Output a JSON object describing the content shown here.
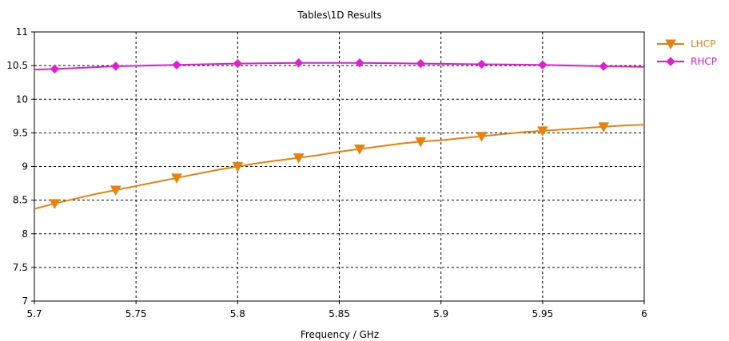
{
  "chart_data": {
    "type": "line",
    "title": "Tables\\1D Results",
    "xlabel": "Frequency / GHz",
    "ylabel": "",
    "xlim": [
      5.7,
      6.0
    ],
    "ylim": [
      7,
      11
    ],
    "x_ticks": [
      "5.7",
      "5.75",
      "5.8",
      "5.85",
      "5.9",
      "5.95",
      "6"
    ],
    "y_ticks": [
      "7",
      "7.5",
      "8",
      "8.5",
      "9",
      "9.5",
      "10",
      "10.5",
      "11"
    ],
    "grid": true,
    "legend_position": "right",
    "series": [
      {
        "name": "LHCP",
        "color": "#e8820c",
        "marker": "triangle-down",
        "x": [
          5.7,
          5.71,
          5.72,
          5.73,
          5.74,
          5.75,
          5.76,
          5.77,
          5.78,
          5.79,
          5.8,
          5.81,
          5.82,
          5.83,
          5.84,
          5.85,
          5.86,
          5.87,
          5.88,
          5.89,
          5.9,
          5.91,
          5.92,
          5.93,
          5.94,
          5.95,
          5.96,
          5.97,
          5.98,
          5.99,
          6.0
        ],
        "y": [
          8.37,
          8.45,
          8.52,
          8.59,
          8.65,
          8.71,
          8.77,
          8.83,
          8.89,
          8.95,
          9.0,
          9.05,
          9.09,
          9.13,
          9.17,
          9.22,
          9.26,
          9.3,
          9.34,
          9.37,
          9.39,
          9.42,
          9.45,
          9.48,
          9.51,
          9.53,
          9.55,
          9.57,
          9.59,
          9.61,
          9.62
        ],
        "marker_x": [
          5.71,
          5.74,
          5.77,
          5.8,
          5.83,
          5.86,
          5.89,
          5.92,
          5.95,
          5.98
        ]
      },
      {
        "name": "RHCP",
        "color": "#e020d0",
        "marker": "diamond",
        "x": [
          5.7,
          5.71,
          5.74,
          5.77,
          5.8,
          5.83,
          5.86,
          5.89,
          5.92,
          5.95,
          5.98,
          6.0
        ],
        "y": [
          10.44,
          10.45,
          10.49,
          10.51,
          10.53,
          10.54,
          10.54,
          10.53,
          10.52,
          10.51,
          10.49,
          10.48
        ],
        "marker_x": [
          5.71,
          5.74,
          5.77,
          5.8,
          5.83,
          5.86,
          5.89,
          5.92,
          5.95,
          5.98
        ]
      }
    ]
  }
}
